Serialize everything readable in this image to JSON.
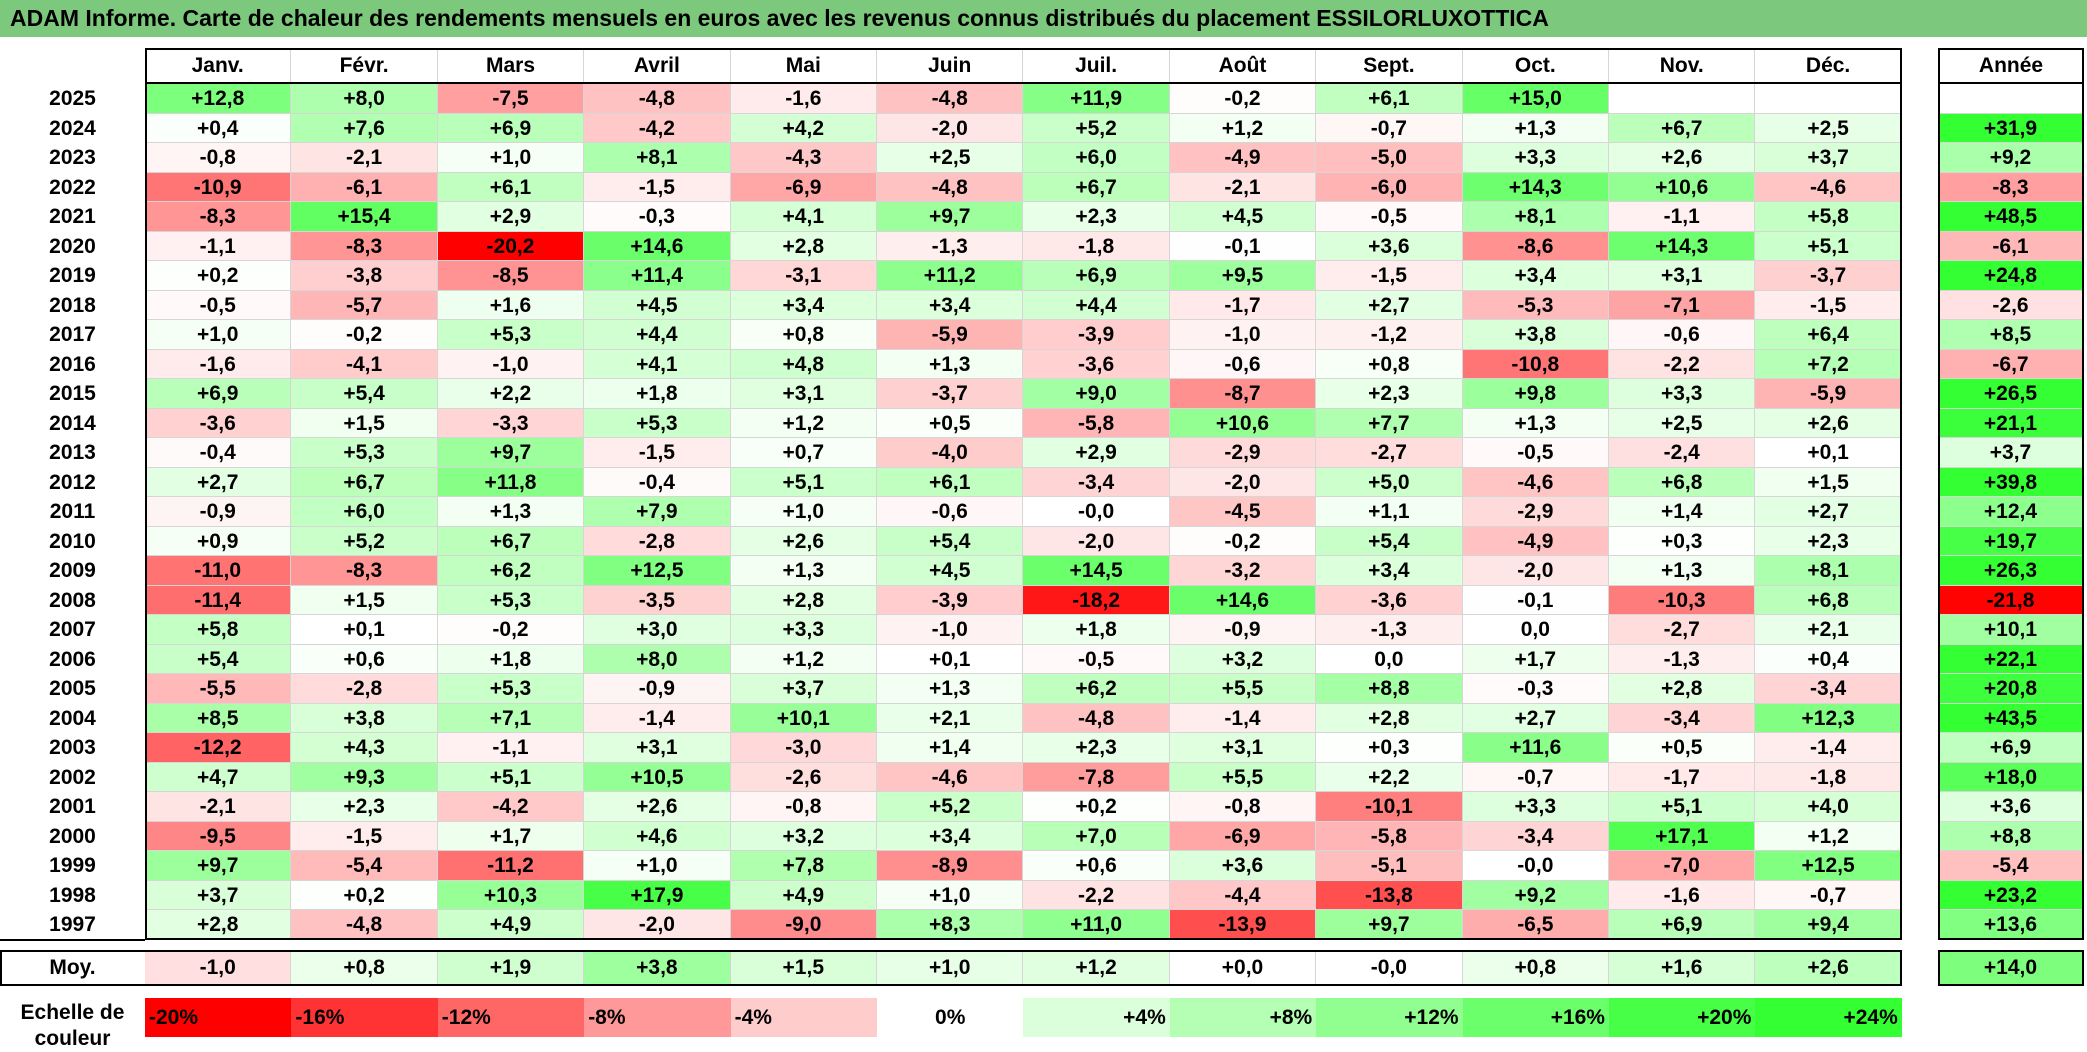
{
  "title": "ADAM Informe. Carte de chaleur des rendements mensuels en euros avec les revenus connus distribués du placement ESSILORLUXOTTICA",
  "chart_data": {
    "type": "heatmap",
    "title": "ADAM Informe. Carte de chaleur des rendements mensuels en euros avec les revenus connus distribués du placement ESSILORLUXOTTICA",
    "columns": [
      "Janv.",
      "Févr.",
      "Mars",
      "Avril",
      "Mai",
      "Juin",
      "Juil.",
      "Août",
      "Sept.",
      "Oct.",
      "Nov.",
      "Déc."
    ],
    "year_column_label": "Année",
    "rows": [
      {
        "year": "2025",
        "months": [
          "+12,8",
          "+8,0",
          "-7,5",
          "-4,8",
          "-1,6",
          "-4,8",
          "+11,9",
          "-0,2",
          "+6,1",
          "+15,0",
          "",
          ""
        ],
        "annual": ""
      },
      {
        "year": "2024",
        "months": [
          "+0,4",
          "+7,6",
          "+6,9",
          "-4,2",
          "+4,2",
          "-2,0",
          "+5,2",
          "+1,2",
          "-0,7",
          "+1,3",
          "+6,7",
          "+2,5"
        ],
        "annual": "+31,9"
      },
      {
        "year": "2023",
        "months": [
          "-0,8",
          "-2,1",
          "+1,0",
          "+8,1",
          "-4,3",
          "+2,5",
          "+6,0",
          "-4,9",
          "-5,0",
          "+3,3",
          "+2,6",
          "+3,7"
        ],
        "annual": "+9,2"
      },
      {
        "year": "2022",
        "months": [
          "-10,9",
          "-6,1",
          "+6,1",
          "-1,5",
          "-6,9",
          "-4,8",
          "+6,7",
          "-2,1",
          "-6,0",
          "+14,3",
          "+10,6",
          "-4,6"
        ],
        "annual": "-8,3"
      },
      {
        "year": "2021",
        "months": [
          "-8,3",
          "+15,4",
          "+2,9",
          "-0,3",
          "+4,1",
          "+9,7",
          "+2,3",
          "+4,5",
          "-0,5",
          "+8,1",
          "-1,1",
          "+5,8"
        ],
        "annual": "+48,5"
      },
      {
        "year": "2020",
        "months": [
          "-1,1",
          "-8,3",
          "-20,2",
          "+14,6",
          "+2,8",
          "-1,3",
          "-1,8",
          "-0,1",
          "+3,6",
          "-8,6",
          "+14,3",
          "+5,1"
        ],
        "annual": "-6,1"
      },
      {
        "year": "2019",
        "months": [
          "+0,2",
          "-3,8",
          "-8,5",
          "+11,4",
          "-3,1",
          "+11,2",
          "+6,9",
          "+9,5",
          "-1,5",
          "+3,4",
          "+3,1",
          "-3,7"
        ],
        "annual": "+24,8"
      },
      {
        "year": "2018",
        "months": [
          "-0,5",
          "-5,7",
          "+1,6",
          "+4,5",
          "+3,4",
          "+3,4",
          "+4,4",
          "-1,7",
          "+2,7",
          "-5,3",
          "-7,1",
          "-1,5"
        ],
        "annual": "-2,6"
      },
      {
        "year": "2017",
        "months": [
          "+1,0",
          "-0,2",
          "+5,3",
          "+4,4",
          "+0,8",
          "-5,9",
          "-3,9",
          "-1,0",
          "-1,2",
          "+3,8",
          "-0,6",
          "+6,4"
        ],
        "annual": "+8,5"
      },
      {
        "year": "2016",
        "months": [
          "-1,6",
          "-4,1",
          "-1,0",
          "+4,1",
          "+4,8",
          "+1,3",
          "-3,6",
          "-0,6",
          "+0,8",
          "-10,8",
          "-2,2",
          "+7,2"
        ],
        "annual": "-6,7"
      },
      {
        "year": "2015",
        "months": [
          "+6,9",
          "+5,4",
          "+2,2",
          "+1,8",
          "+3,1",
          "-3,7",
          "+9,0",
          "-8,7",
          "+2,3",
          "+9,8",
          "+3,3",
          "-5,9"
        ],
        "annual": "+26,5"
      },
      {
        "year": "2014",
        "months": [
          "-3,6",
          "+1,5",
          "-3,3",
          "+5,3",
          "+1,2",
          "+0,5",
          "-5,8",
          "+10,6",
          "+7,7",
          "+1,3",
          "+2,5",
          "+2,6"
        ],
        "annual": "+21,1"
      },
      {
        "year": "2013",
        "months": [
          "-0,4",
          "+5,3",
          "+9,7",
          "-1,5",
          "+0,7",
          "-4,0",
          "+2,9",
          "-2,9",
          "-2,7",
          "-0,5",
          "-2,4",
          "+0,1"
        ],
        "annual": "+3,7"
      },
      {
        "year": "2012",
        "months": [
          "+2,7",
          "+6,7",
          "+11,8",
          "-0,4",
          "+5,1",
          "+6,1",
          "-3,4",
          "-2,0",
          "+5,0",
          "-4,6",
          "+6,8",
          "+1,5"
        ],
        "annual": "+39,8"
      },
      {
        "year": "2011",
        "months": [
          "-0,9",
          "+6,0",
          "+1,3",
          "+7,9",
          "+1,0",
          "-0,6",
          "-0,0",
          "-4,5",
          "+1,1",
          "-2,9",
          "+1,4",
          "+2,7"
        ],
        "annual": "+12,4"
      },
      {
        "year": "2010",
        "months": [
          "+0,9",
          "+5,2",
          "+6,7",
          "-2,8",
          "+2,6",
          "+5,4",
          "-2,0",
          "-0,2",
          "+5,4",
          "-4,9",
          "+0,3",
          "+2,3"
        ],
        "annual": "+19,7"
      },
      {
        "year": "2009",
        "months": [
          "-11,0",
          "-8,3",
          "+6,2",
          "+12,5",
          "+1,3",
          "+4,5",
          "+14,5",
          "-3,2",
          "+3,4",
          "-2,0",
          "+1,3",
          "+8,1"
        ],
        "annual": "+26,3"
      },
      {
        "year": "2008",
        "months": [
          "-11,4",
          "+1,5",
          "+5,3",
          "-3,5",
          "+2,8",
          "-3,9",
          "-18,2",
          "+14,6",
          "-3,6",
          "-0,1",
          "-10,3",
          "+6,8"
        ],
        "annual": "-21,8"
      },
      {
        "year": "2007",
        "months": [
          "+5,8",
          "+0,1",
          "-0,2",
          "+3,0",
          "+3,3",
          "-1,0",
          "+1,8",
          "-0,9",
          "-1,3",
          "0,0",
          "-2,7",
          "+2,1"
        ],
        "annual": "+10,1"
      },
      {
        "year": "2006",
        "months": [
          "+5,4",
          "+0,6",
          "+1,8",
          "+8,0",
          "+1,2",
          "+0,1",
          "-0,5",
          "+3,2",
          "0,0",
          "+1,7",
          "-1,3",
          "+0,4"
        ],
        "annual": "+22,1"
      },
      {
        "year": "2005",
        "months": [
          "-5,5",
          "-2,8",
          "+5,3",
          "-0,9",
          "+3,7",
          "+1,3",
          "+6,2",
          "+5,5",
          "+8,8",
          "-0,3",
          "+2,8",
          "-3,4"
        ],
        "annual": "+20,8"
      },
      {
        "year": "2004",
        "months": [
          "+8,5",
          "+3,8",
          "+7,1",
          "-1,4",
          "+10,1",
          "+2,1",
          "-4,8",
          "-1,4",
          "+2,8",
          "+2,7",
          "-3,4",
          "+12,3"
        ],
        "annual": "+43,5"
      },
      {
        "year": "2003",
        "months": [
          "-12,2",
          "+4,3",
          "-1,1",
          "+3,1",
          "-3,0",
          "+1,4",
          "+2,3",
          "+3,1",
          "+0,3",
          "+11,6",
          "+0,5",
          "-1,4"
        ],
        "annual": "+6,9"
      },
      {
        "year": "2002",
        "months": [
          "+4,7",
          "+9,3",
          "+5,1",
          "+10,5",
          "-2,6",
          "-4,6",
          "-7,8",
          "+5,5",
          "+2,2",
          "-0,7",
          "-1,7",
          "-1,8"
        ],
        "annual": "+18,0"
      },
      {
        "year": "2001",
        "months": [
          "-2,1",
          "+2,3",
          "-4,2",
          "+2,6",
          "-0,8",
          "+5,2",
          "+0,2",
          "-0,8",
          "-10,1",
          "+3,3",
          "+5,1",
          "+4,0"
        ],
        "annual": "+3,6"
      },
      {
        "year": "2000",
        "months": [
          "-9,5",
          "-1,5",
          "+1,7",
          "+4,6",
          "+3,2",
          "+3,4",
          "+7,0",
          "-6,9",
          "-5,8",
          "-3,4",
          "+17,1",
          "+1,2"
        ],
        "annual": "+8,8"
      },
      {
        "year": "1999",
        "months": [
          "+9,7",
          "-5,4",
          "-11,2",
          "+1,0",
          "+7,8",
          "-8,9",
          "+0,6",
          "+3,6",
          "-5,1",
          "-0,0",
          "-7,0",
          "+12,5"
        ],
        "annual": "-5,4"
      },
      {
        "year": "1998",
        "months": [
          "+3,7",
          "+0,2",
          "+10,3",
          "+17,9",
          "+4,9",
          "+1,0",
          "-2,2",
          "-4,4",
          "-13,8",
          "+9,2",
          "-1,6",
          "-0,7"
        ],
        "annual": "+23,2"
      },
      {
        "year": "1997",
        "months": [
          "+2,8",
          "-4,8",
          "+4,9",
          "-2,0",
          "-9,0",
          "+8,3",
          "+11,0",
          "-13,9",
          "+9,7",
          "-6,5",
          "+6,9",
          "+9,4"
        ],
        "annual": "+13,6"
      }
    ],
    "average": {
      "label": "Moy.",
      "months": [
        "-1,0",
        "+0,8",
        "+1,9",
        "+3,8",
        "+1,5",
        "+1,0",
        "+1,2",
        "+0,0",
        "-0,0",
        "+0,8",
        "+1,6",
        "+2,6"
      ],
      "annual": "+14,0"
    },
    "legend": {
      "label_line1": "Echelle de",
      "label_line2": "couleur",
      "steps": [
        "-20%",
        "-16%",
        "-12%",
        "-8%",
        "-4%",
        "0%",
        "+4%",
        "+8%",
        "+12%",
        "+16%",
        "+20%",
        "+24%"
      ],
      "step_values": [
        -20,
        -16,
        -12,
        -8,
        -4,
        0,
        4,
        8,
        12,
        16,
        20,
        24
      ]
    },
    "colors": {
      "negative_max": "#ff0000",
      "neutral": "#ffffff",
      "positive_max": "#33ff33",
      "title_bar": "#7cc87c"
    }
  }
}
